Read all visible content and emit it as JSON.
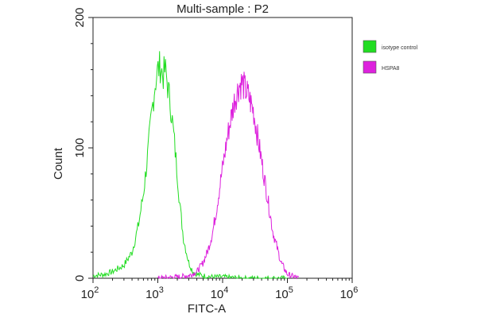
{
  "chart_data": {
    "type": "line",
    "title": "Multi-sample : P2",
    "xlabel": "FITC-A",
    "ylabel": "Count",
    "x_scale": "log",
    "xlim": [
      100,
      1000000
    ],
    "ylim": [
      0,
      200
    ],
    "x_ticks": [
      {
        "value": 100,
        "base": "10",
        "exp": "2"
      },
      {
        "value": 1000,
        "base": "10",
        "exp": "3"
      },
      {
        "value": 10000,
        "base": "10",
        "exp": "4"
      },
      {
        "value": 100000,
        "base": "10",
        "exp": "5"
      },
      {
        "value": 1000000,
        "base": "10",
        "exp": "6"
      }
    ],
    "y_ticks": [
      {
        "value": 0,
        "label": "0"
      },
      {
        "value": 100,
        "label": "100"
      },
      {
        "value": 200,
        "label": "200"
      }
    ],
    "grid": false,
    "legend_position": "top-right, outside plot",
    "series": [
      {
        "name": "isotype control",
        "color": "#22dd22",
        "x": [
          100,
          150,
          200,
          300,
          400,
          500,
          600,
          700,
          800,
          900,
          1000,
          1100,
          1200,
          1300,
          1400,
          1600,
          1800,
          2000,
          2200,
          2500,
          3000,
          3500,
          4000,
          5000,
          7000,
          10000,
          20000,
          50000,
          100000
        ],
        "y": [
          2,
          3,
          5,
          10,
          20,
          40,
          65,
          95,
          125,
          148,
          160,
          163,
          155,
          160,
          150,
          130,
          105,
          80,
          55,
          30,
          12,
          5,
          3,
          2,
          1,
          1,
          0,
          0,
          0
        ]
      },
      {
        "name": "HSPA8",
        "color": "#dd22dd",
        "x": [
          1000,
          2000,
          3000,
          4000,
          5000,
          6000,
          7000,
          8000,
          10000,
          12000,
          15000,
          18000,
          20000,
          25000,
          30000,
          40000,
          50000,
          60000,
          80000,
          100000,
          150000
        ],
        "y": [
          0,
          1,
          2,
          5,
          12,
          22,
          35,
          52,
          85,
          110,
          135,
          148,
          150,
          140,
          128,
          90,
          60,
          35,
          12,
          3,
          0
        ]
      }
    ]
  }
}
